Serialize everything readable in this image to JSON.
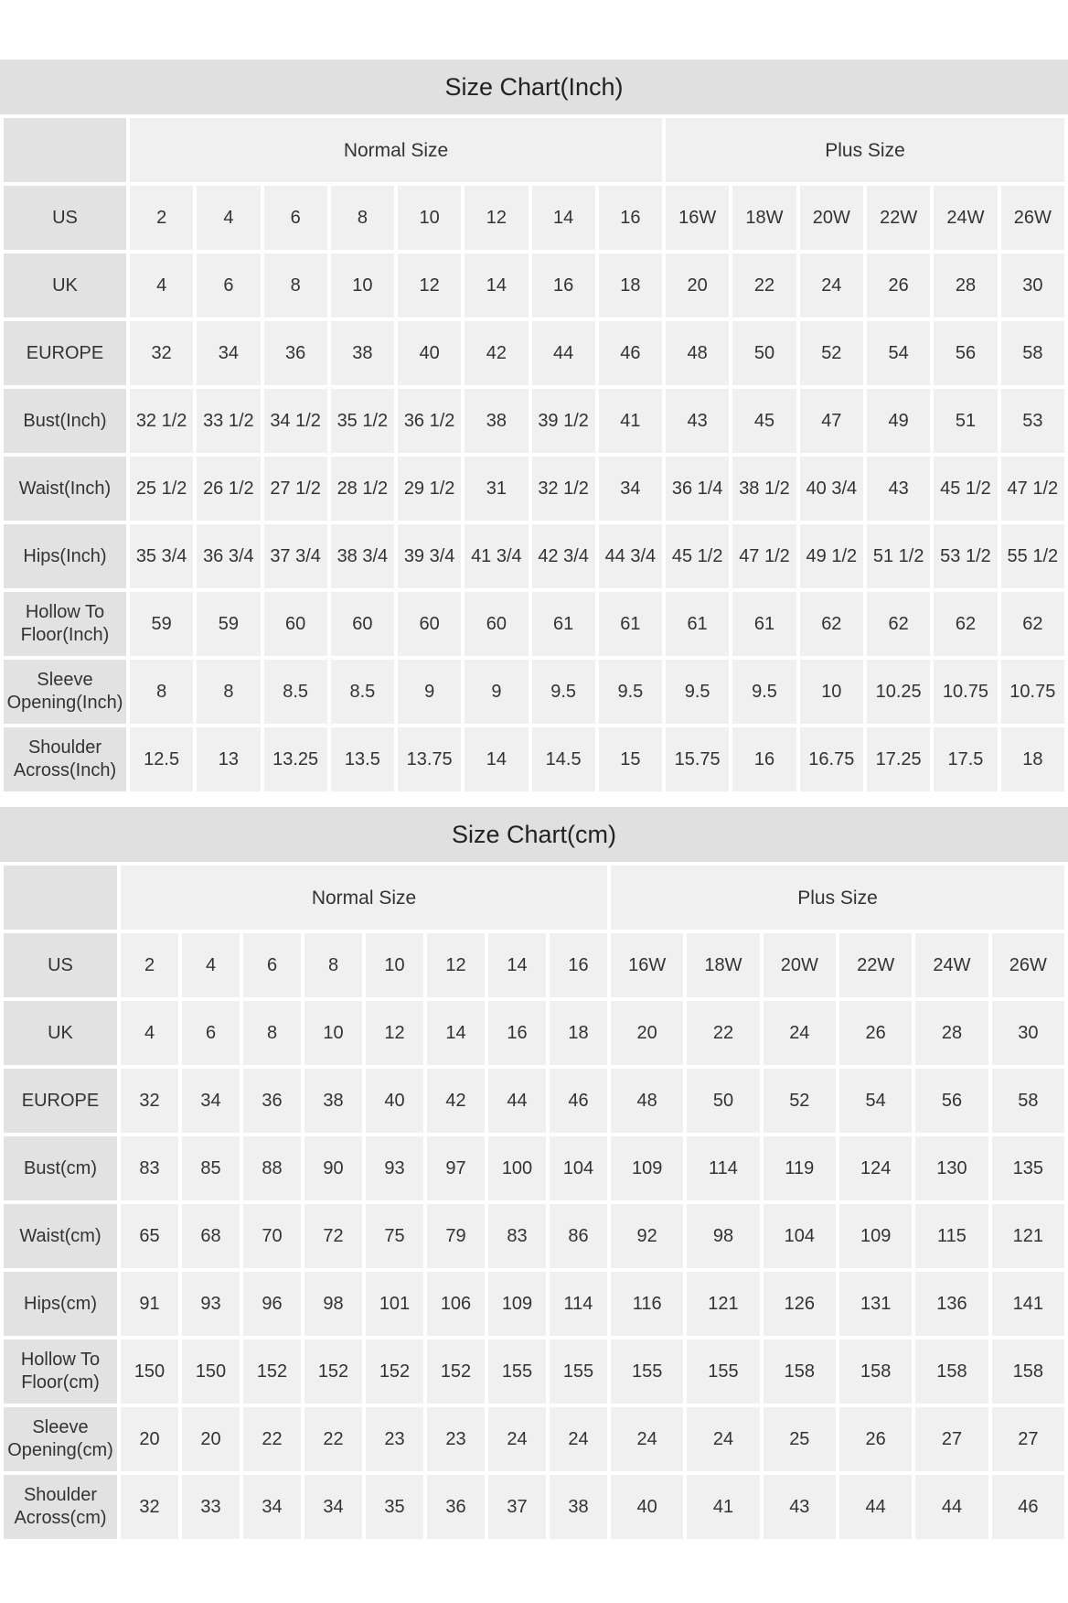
{
  "tables": [
    {
      "title": "Size Chart(Inch)",
      "groups": [
        "Normal Size",
        "Plus Size"
      ],
      "rows": [
        {
          "label": "US",
          "values": [
            "2",
            "4",
            "6",
            "8",
            "10",
            "12",
            "14",
            "16",
            "16W",
            "18W",
            "20W",
            "22W",
            "24W",
            "26W"
          ]
        },
        {
          "label": "UK",
          "values": [
            "4",
            "6",
            "8",
            "10",
            "12",
            "14",
            "16",
            "18",
            "20",
            "22",
            "24",
            "26",
            "28",
            "30"
          ]
        },
        {
          "label": "EUROPE",
          "values": [
            "32",
            "34",
            "36",
            "38",
            "40",
            "42",
            "44",
            "46",
            "48",
            "50",
            "52",
            "54",
            "56",
            "58"
          ]
        },
        {
          "label": "Bust(Inch)",
          "values": [
            "32 1/2",
            "33 1/2",
            "34 1/2",
            "35 1/2",
            "36 1/2",
            "38",
            "39 1/2",
            "41",
            "43",
            "45",
            "47",
            "49",
            "51",
            "53"
          ]
        },
        {
          "label": "Waist(Inch)",
          "values": [
            "25 1/2",
            "26 1/2",
            "27 1/2",
            "28 1/2",
            "29 1/2",
            "31",
            "32 1/2",
            "34",
            "36 1/4",
            "38 1/2",
            "40 3/4",
            "43",
            "45 1/2",
            "47 1/2"
          ]
        },
        {
          "label": "Hips(Inch)",
          "values": [
            "35 3/4",
            "36 3/4",
            "37 3/4",
            "38 3/4",
            "39 3/4",
            "41 3/4",
            "42 3/4",
            "44 3/4",
            "45 1/2",
            "47 1/2",
            "49 1/2",
            "51 1/2",
            "53 1/2",
            "55 1/2"
          ]
        },
        {
          "label": "Hollow To Floor(Inch)",
          "values": [
            "59",
            "59",
            "60",
            "60",
            "60",
            "60",
            "61",
            "61",
            "61",
            "61",
            "62",
            "62",
            "62",
            "62"
          ]
        },
        {
          "label": "Sleeve Opening(Inch)",
          "values": [
            "8",
            "8",
            "8.5",
            "8.5",
            "9",
            "9",
            "9.5",
            "9.5",
            "9.5",
            "9.5",
            "10",
            "10.25",
            "10.75",
            "10.75"
          ]
        },
        {
          "label": "Shoulder Across(Inch)",
          "values": [
            "12.5",
            "13",
            "13.25",
            "13.5",
            "13.75",
            "14",
            "14.5",
            "15",
            "15.75",
            "16",
            "16.75",
            "17.25",
            "17.5",
            "18"
          ]
        }
      ]
    },
    {
      "title": "Size Chart(cm)",
      "groups": [
        "Normal Size",
        "Plus Size"
      ],
      "rows": [
        {
          "label": "US",
          "values": [
            "2",
            "4",
            "6",
            "8",
            "10",
            "12",
            "14",
            "16",
            "16W",
            "18W",
            "20W",
            "22W",
            "24W",
            "26W"
          ]
        },
        {
          "label": "UK",
          "values": [
            "4",
            "6",
            "8",
            "10",
            "12",
            "14",
            "16",
            "18",
            "20",
            "22",
            "24",
            "26",
            "28",
            "30"
          ]
        },
        {
          "label": "EUROPE",
          "values": [
            "32",
            "34",
            "36",
            "38",
            "40",
            "42",
            "44",
            "46",
            "48",
            "50",
            "52",
            "54",
            "56",
            "58"
          ]
        },
        {
          "label": "Bust(cm)",
          "values": [
            "83",
            "85",
            "88",
            "90",
            "93",
            "97",
            "100",
            "104",
            "109",
            "114",
            "119",
            "124",
            "130",
            "135"
          ]
        },
        {
          "label": "Waist(cm)",
          "values": [
            "65",
            "68",
            "70",
            "72",
            "75",
            "79",
            "83",
            "86",
            "92",
            "98",
            "104",
            "109",
            "115",
            "121"
          ]
        },
        {
          "label": "Hips(cm)",
          "values": [
            "91",
            "93",
            "96",
            "98",
            "101",
            "106",
            "109",
            "114",
            "116",
            "121",
            "126",
            "131",
            "136",
            "141"
          ]
        },
        {
          "label": "Hollow To Floor(cm)",
          "values": [
            "150",
            "150",
            "152",
            "152",
            "152",
            "152",
            "155",
            "155",
            "155",
            "155",
            "158",
            "158",
            "158",
            "158"
          ]
        },
        {
          "label": "Sleeve Opening(cm)",
          "values": [
            "20",
            "20",
            "22",
            "22",
            "23",
            "23",
            "24",
            "24",
            "24",
            "24",
            "25",
            "26",
            "27",
            "27"
          ]
        },
        {
          "label": "Shoulder Across(cm)",
          "values": [
            "32",
            "33",
            "34",
            "34",
            "35",
            "36",
            "37",
            "38",
            "40",
            "41",
            "43",
            "44",
            "44",
            "46"
          ]
        }
      ]
    }
  ]
}
